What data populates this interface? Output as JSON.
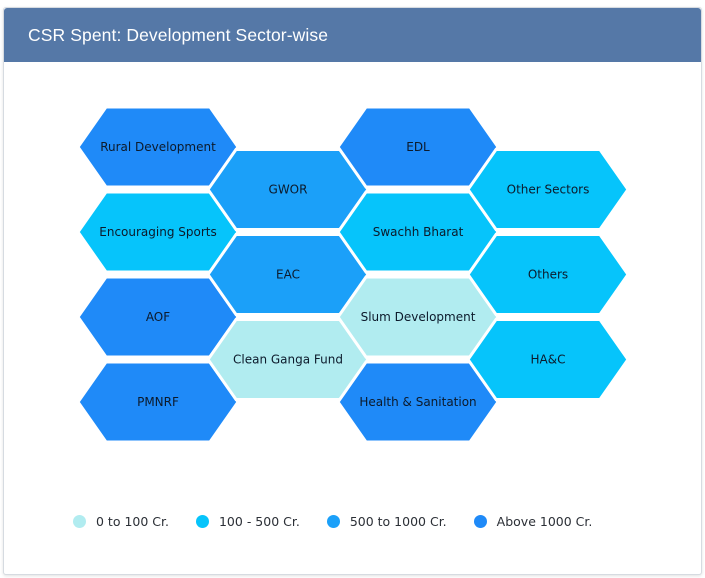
{
  "header": {
    "title": "CSR Spent: Development Sector-wise",
    "bg_color": "#5578a7"
  },
  "colors": {
    "0 to 100 Cr.": "#b1ecf0",
    "100 - 500 Cr.": "#06c4fb",
    "500 to 1000 Cr.": "#1ba0f9",
    "Above 1000 Cr.": "#1f8af8"
  },
  "chart_data": {
    "type": "hexbin",
    "title": "CSR Spent: Development Sector-wise",
    "tiles": [
      {
        "label": "Rural Development",
        "col": 0,
        "row": 0,
        "category": "Above 1000 Cr."
      },
      {
        "label": "Encouraging Sports",
        "col": 0,
        "row": 2,
        "category": "100 - 500 Cr."
      },
      {
        "label": "AOF",
        "col": 0,
        "row": 4,
        "category": "Above 1000 Cr."
      },
      {
        "label": "PMNRF",
        "col": 0,
        "row": 6,
        "category": "Above 1000 Cr."
      },
      {
        "label": "GWOR",
        "col": 1,
        "row": 1,
        "category": "500 to 1000 Cr."
      },
      {
        "label": "EAC",
        "col": 1,
        "row": 3,
        "category": "500 to 1000 Cr."
      },
      {
        "label": "Clean Ganga Fund",
        "col": 1,
        "row": 5,
        "category": "0 to 100 Cr."
      },
      {
        "label": "EDL",
        "col": 2,
        "row": 0,
        "category": "Above 1000 Cr."
      },
      {
        "label": "Swachh Bharat",
        "col": 2,
        "row": 2,
        "category": "100 - 500 Cr."
      },
      {
        "label": "Slum Development",
        "col": 2,
        "row": 4,
        "category": "0 to 100 Cr."
      },
      {
        "label": "Health & Sanitation",
        "col": 2,
        "row": 6,
        "category": "Above 1000 Cr."
      },
      {
        "label": "Other Sectors",
        "col": 3,
        "row": 1,
        "category": "100 - 500 Cr."
      },
      {
        "label": "Others",
        "col": 3,
        "row": 3,
        "category": "100 - 500 Cr."
      },
      {
        "label": "HA&C",
        "col": 3,
        "row": 5,
        "category": "100 - 500 Cr."
      }
    ],
    "legend": [
      {
        "label": "0 to 100 Cr.",
        "color": "#b1ecf0"
      },
      {
        "label": "100 - 500 Cr.",
        "color": "#06c4fb"
      },
      {
        "label": "500 to 1000 Cr.",
        "color": "#1ba0f9"
      },
      {
        "label": "Above 1000 Cr.",
        "color": "#1f8af8"
      }
    ],
    "legend_position": "bottom"
  }
}
